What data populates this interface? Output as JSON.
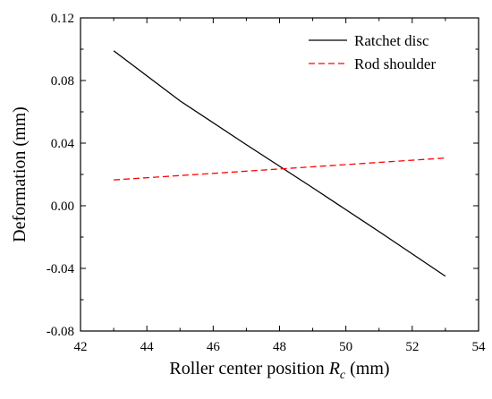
{
  "chart_data": {
    "type": "line",
    "title": "",
    "xlabel": "Roller center position ",
    "xlabel_symbol": "R",
    "xlabel_subscript": "c",
    "xlabel_unit": " (mm)",
    "ylabel": "Deformation (mm)",
    "xlim": [
      42,
      54
    ],
    "ylim": [
      -0.08,
      0.12
    ],
    "xticks": [
      "42",
      "44",
      "46",
      "48",
      "50",
      "52",
      "54"
    ],
    "yticks": [
      "-0.08",
      "-0.04",
      "0.00",
      "0.04",
      "0.08",
      "0.12"
    ],
    "legend_position": "top-right",
    "grid": false,
    "series": [
      {
        "name": "Ratchet disc",
        "color": "#000000",
        "dash": "solid",
        "x": [
          43,
          45,
          47,
          49,
          51,
          53
        ],
        "y": [
          0.099,
          0.067,
          0.039,
          0.0115,
          -0.0165,
          -0.045
        ]
      },
      {
        "name": "Rod shoulder",
        "color": "#ff0000",
        "dash": "dashed",
        "x": [
          43,
          53
        ],
        "y": [
          0.0165,
          0.0305
        ]
      }
    ]
  }
}
